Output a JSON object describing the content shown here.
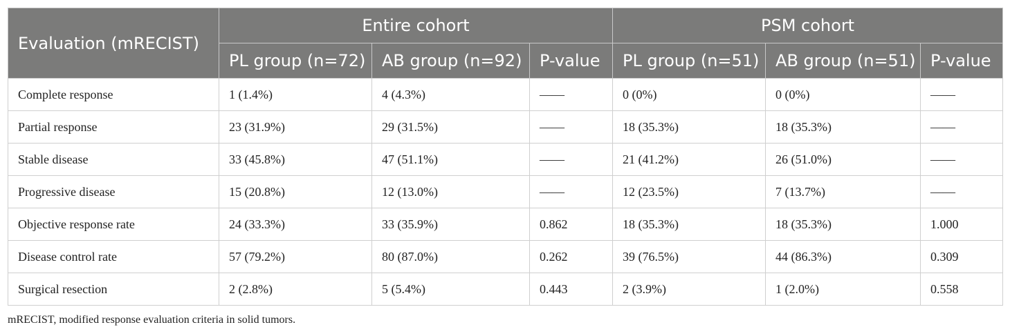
{
  "table": {
    "row_header": "Evaluation (mRECIST)",
    "groups": [
      "Entire cohort",
      "PSM cohort"
    ],
    "subheaders": [
      "PL group (n=72)",
      "AB group (n=92)",
      "P-value",
      "PL group (n=51)",
      "AB group (n=51)",
      "P-value"
    ],
    "rows": [
      {
        "label": "Complete response",
        "cells": [
          "1 (1.4%)",
          "4 (4.3%)",
          "——",
          "0 (0%)",
          "0 (0%)",
          "——"
        ]
      },
      {
        "label": "Partial response",
        "cells": [
          "23 (31.9%)",
          "29 (31.5%)",
          "——",
          "18 (35.3%)",
          "18 (35.3%)",
          "——"
        ]
      },
      {
        "label": "Stable disease",
        "cells": [
          "33 (45.8%)",
          "47 (51.1%)",
          "——",
          "21 (41.2%)",
          "26 (51.0%)",
          "——"
        ]
      },
      {
        "label": "Progressive disease",
        "cells": [
          "15 (20.8%)",
          "12 (13.0%)",
          "——",
          "12 (23.5%)",
          "7 (13.7%)",
          "——"
        ]
      },
      {
        "label": "Objective response rate",
        "cells": [
          "24 (33.3%)",
          "33 (35.9%)",
          "0.862",
          "18 (35.3%)",
          "18 (35.3%)",
          "1.000"
        ]
      },
      {
        "label": "Disease control rate",
        "cells": [
          "57 (79.2%)",
          "80 (87.0%)",
          "0.262",
          "39 (76.5%)",
          "44 (86.3%)",
          "0.309"
        ]
      },
      {
        "label": "Surgical resection",
        "cells": [
          "2 (2.8%)",
          "5 (5.4%)",
          "0.443",
          "2 (3.9%)",
          "1 (2.0%)",
          "0.558"
        ]
      }
    ]
  },
  "footnote": "mRECIST, modified response evaluation criteria in solid tumors.",
  "colors": {
    "header_bg": "#7b7b7a",
    "header_text": "#ffffff",
    "border": "#cfcfcf"
  }
}
